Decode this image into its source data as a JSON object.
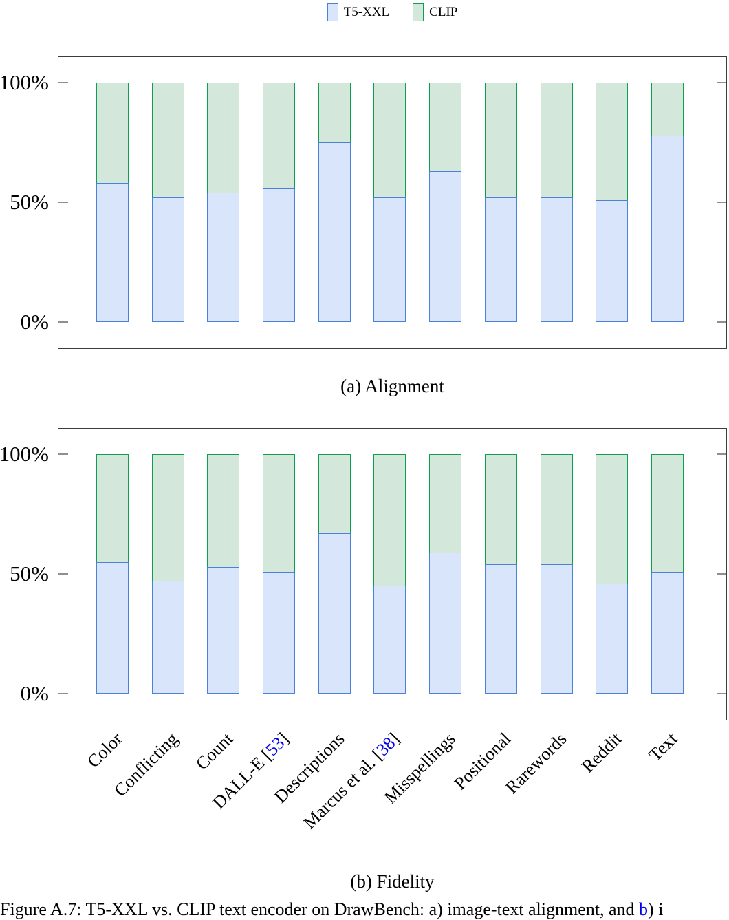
{
  "legend": {
    "items": [
      {
        "label": "T5-XXL",
        "fill": "#d9e5fb",
        "border": "#4a82d9"
      },
      {
        "label": "CLIP",
        "fill": "#d3e8da",
        "border": "#0d9e50"
      }
    ]
  },
  "chart_data": [
    {
      "type": "bar",
      "stacked": true,
      "title": "(a) Alignment",
      "categories": [
        "Color",
        "Conflicting",
        "Count",
        "DALL-E [53]",
        "Descriptions",
        "Marcus et al. [38]",
        "Misspellings",
        "Positional",
        "Rarewords",
        "Reddit",
        "Text"
      ],
      "series": [
        {
          "name": "T5-XXL",
          "values": [
            58,
            52,
            54,
            56,
            75,
            52,
            63,
            52,
            52,
            51,
            78
          ]
        },
        {
          "name": "CLIP",
          "values": [
            42,
            48,
            46,
            44,
            25,
            48,
            37,
            48,
            48,
            49,
            22
          ]
        }
      ],
      "xlabel": "",
      "ylabel": "",
      "ylim": [
        0,
        100
      ],
      "y_ticks": [
        {
          "label": "100%",
          "value": 100
        },
        {
          "label": "50%",
          "value": 50
        },
        {
          "label": "0%",
          "value": 0
        }
      ],
      "grid": false,
      "legend_position": "top",
      "x_tick_labels_shown": false
    },
    {
      "type": "bar",
      "stacked": true,
      "title": "(b) Fidelity",
      "categories": [
        "Color",
        "Conflicting",
        "Count",
        "DALL-E [53]",
        "Descriptions",
        "Marcus et al. [38]",
        "Misspellings",
        "Positional",
        "Rarewords",
        "Reddit",
        "Text"
      ],
      "series": [
        {
          "name": "T5-XXL",
          "values": [
            55,
            47,
            53,
            51,
            67,
            45,
            59,
            54,
            54,
            46,
            51
          ]
        },
        {
          "name": "CLIP",
          "values": [
            45,
            53,
            47,
            49,
            33,
            55,
            41,
            46,
            46,
            54,
            49
          ]
        }
      ],
      "xlabel": "",
      "ylabel": "",
      "ylim": [
        0,
        100
      ],
      "y_ticks": [
        {
          "label": "100%",
          "value": 100
        },
        {
          "label": "50%",
          "value": 50
        },
        {
          "label": "0%",
          "value": 0
        }
      ],
      "grid": false,
      "legend_position": "top",
      "x_tick_labels_shown": true
    }
  ],
  "figure_caption": {
    "prefix": "Figure A.7: T5-XXL vs. CLIP text encoder on DrawBench: a) image-text alignment, and ",
    "link": "b",
    "suffix": ") i"
  }
}
